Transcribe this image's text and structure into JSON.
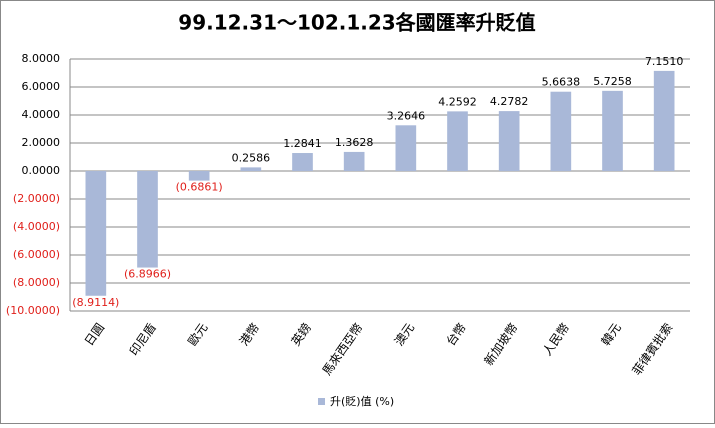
{
  "chart_data": {
    "type": "bar",
    "title": "99.12.31～102.1.23各國匯率升貶值",
    "categories": [
      "日圓",
      "印尼盾",
      "歐元",
      "港幣",
      "英鎊",
      "馬來西亞幣",
      "澳元",
      "台幣",
      "新加坡幣",
      "人民幣",
      "韓元",
      "菲律賓批索"
    ],
    "series": [
      {
        "name": "升(貶)值 (%)",
        "color": "#a9b8d8",
        "values": [
          -8.9114,
          -6.8966,
          -0.6861,
          0.2586,
          1.2841,
          1.3628,
          3.2646,
          4.2592,
          4.2782,
          5.6638,
          5.7258,
          7.151
        ],
        "value_labels": [
          "(8.9114)",
          "(6.8966)",
          "(0.6861)",
          "0.2586",
          "1.2841",
          "1.3628",
          "3.2646",
          "4.2592",
          "4.2782",
          "5.6638",
          "5.7258",
          "7.1510"
        ]
      }
    ],
    "negative_label_color": "#e0201b",
    "ylim": [
      -10,
      8
    ],
    "yticks": [
      {
        "value": -10,
        "label": "(10.0000)"
      },
      {
        "value": -8,
        "label": "(8.0000)"
      },
      {
        "value": -6,
        "label": "(6.0000)"
      },
      {
        "value": -4,
        "label": "(4.0000)"
      },
      {
        "value": -2,
        "label": "(2.0000)"
      },
      {
        "value": 0,
        "label": "0.0000"
      },
      {
        "value": 2,
        "label": "2.0000"
      },
      {
        "value": 4,
        "label": "4.0000"
      },
      {
        "value": 6,
        "label": "6.0000"
      },
      {
        "value": 8,
        "label": "8.0000"
      }
    ],
    "grid": true,
    "legend": "bottom"
  }
}
